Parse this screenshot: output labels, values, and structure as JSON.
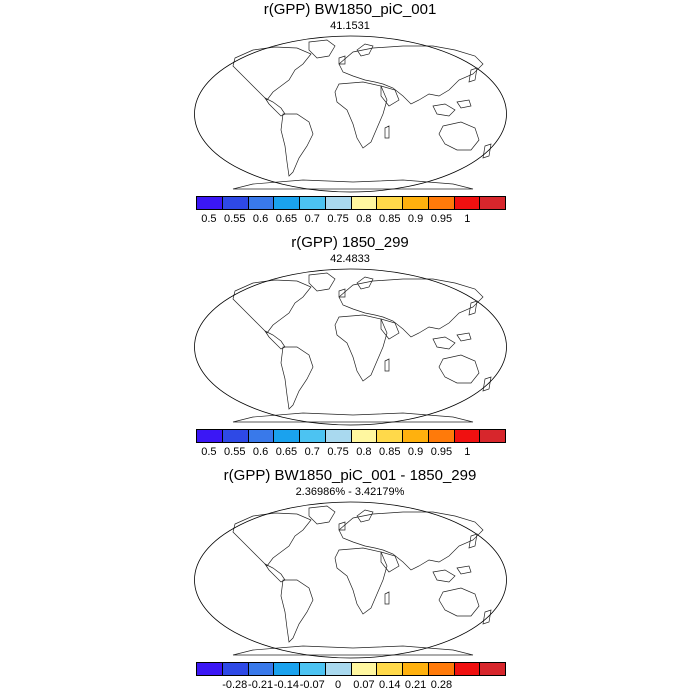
{
  "panels": [
    {
      "title": "r(GPP) BW1850_piC_001",
      "subtitle": "41.1531",
      "colorbar": {
        "colors": [
          "#3b17f5",
          "#2e49e6",
          "#3979ea",
          "#1aa2ee",
          "#4cc3f2",
          "#a9d9ef",
          "#fff7a0",
          "#ffd94a",
          "#ffb10e",
          "#ff7a0a",
          "#f01010",
          "#d7262c"
        ],
        "ticks": [
          "0.5",
          "0.55",
          "0.6",
          "0.65",
          "0.7",
          "0.75",
          "0.8",
          "0.85",
          "0.9",
          "0.95",
          "1"
        ]
      }
    },
    {
      "title": "r(GPP) 1850_299",
      "subtitle": "42.4833",
      "colorbar": {
        "colors": [
          "#3b17f5",
          "#2e49e6",
          "#3979ea",
          "#1aa2ee",
          "#4cc3f2",
          "#a9d9ef",
          "#fff7a0",
          "#ffd94a",
          "#ffb10e",
          "#ff7a0a",
          "#f01010",
          "#d7262c"
        ],
        "ticks": [
          "0.5",
          "0.55",
          "0.6",
          "0.65",
          "0.7",
          "0.75",
          "0.8",
          "0.85",
          "0.9",
          "0.95",
          "1"
        ]
      }
    },
    {
      "title": "r(GPP) BW1850_piC_001 - 1850_299",
      "subtitle": "2.36986% - 3.42179%",
      "colorbar": {
        "colors": [
          "#3b17f5",
          "#2e49e6",
          "#3979ea",
          "#1aa2ee",
          "#4cc3f2",
          "#a9d9ef",
          "#fff7a0",
          "#ffd94a",
          "#ffb10e",
          "#ff7a0a",
          "#f01010",
          "#d7262c"
        ],
        "ticks": [
          "-0.28",
          "-0.21",
          "-0.14",
          "-0.07",
          "0",
          "0.07",
          "0.14",
          "0.21",
          "0.28"
        ]
      }
    }
  ],
  "map_palettes": {
    "correlation": [
      "#f01010",
      "#ff2a0a",
      "#e81818",
      "#ff7a0a",
      "#ffb10e",
      "#ffd94a",
      "#fff7a0",
      "#a9d9ef",
      "#4cc3f2",
      "#3979ea"
    ],
    "difference": [
      "#fff7a0",
      "#a9d9ef",
      "#eef0c8",
      "#fff7a0",
      "#a9d9ef",
      "#ffffff",
      "#4cc3f2",
      "#ffd94a",
      "#fff7a0",
      "#a9d9ef"
    ]
  }
}
